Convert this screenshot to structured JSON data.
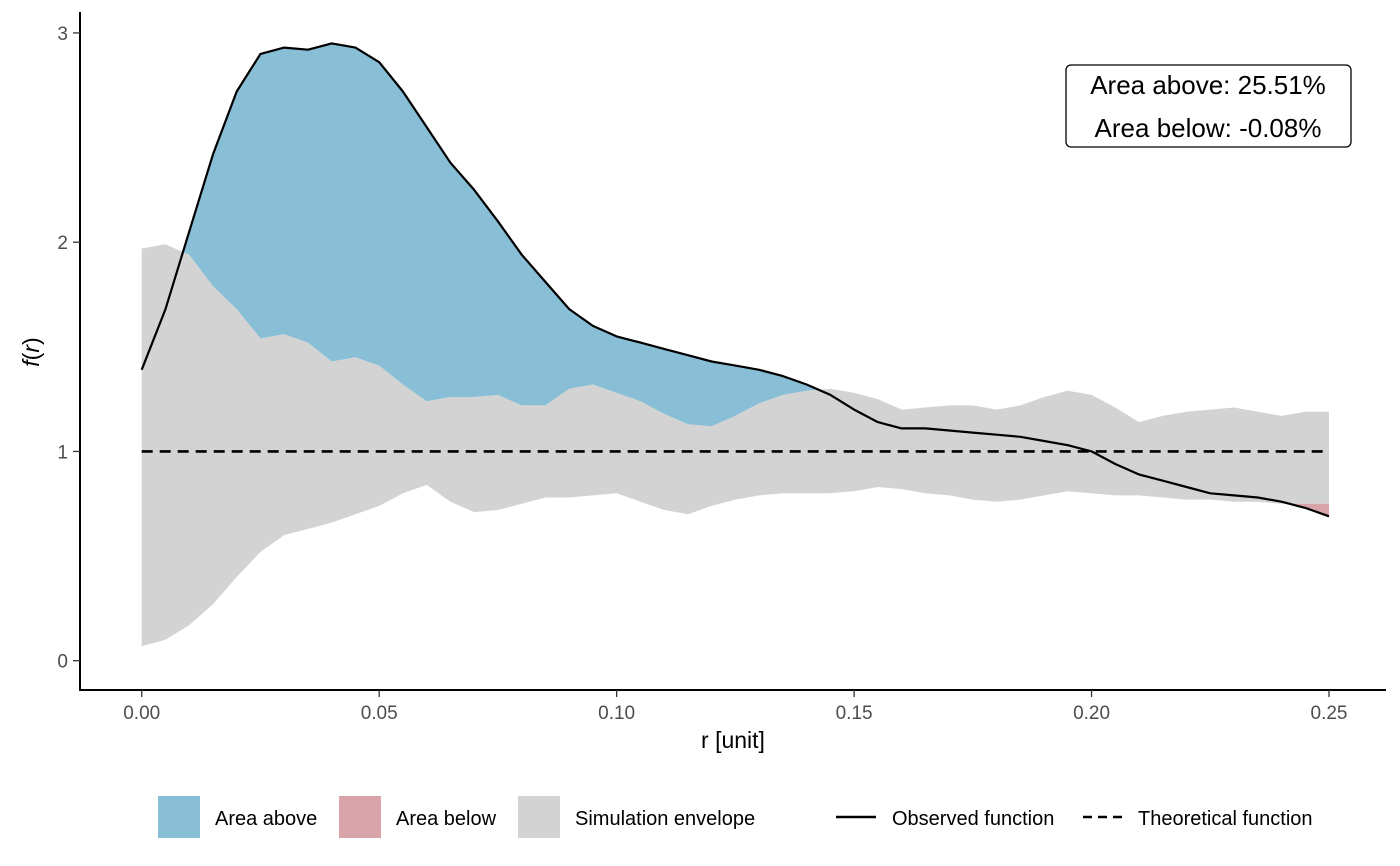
{
  "chart_data": {
    "type": "area",
    "xlabel": "r [unit]",
    "ylabel": "f(r)",
    "ylabel_parts": {
      "fn": "f",
      "open": "(",
      "var": "r",
      "close": ")"
    },
    "xlim": [
      -0.013,
      0.262
    ],
    "ylim": [
      -0.14,
      3.1
    ],
    "xticks": [
      0.0,
      0.05,
      0.1,
      0.15,
      0.2,
      0.25
    ],
    "xtick_labels": [
      "0.00",
      "0.05",
      "0.10",
      "0.15",
      "0.20",
      "0.25"
    ],
    "yticks": [
      0,
      1,
      2,
      3
    ],
    "ytick_labels": [
      "0",
      "1",
      "2",
      "3"
    ],
    "grid": false,
    "annotation": {
      "line1": "Area above: 25.51%",
      "line2": "Area below: -0.08%",
      "position": "top-right"
    },
    "colors": {
      "area_above": "#89bfd6",
      "area_below": "#d9a3aa",
      "envelope": "#d3d3d3",
      "observed": "#000000",
      "theoretical": "#000000"
    },
    "legend": {
      "position": "bottom",
      "items": [
        {
          "label": "Area above",
          "kind": "fill",
          "color": "#89bfd6"
        },
        {
          "label": "Area below",
          "kind": "fill",
          "color": "#d9a3aa"
        },
        {
          "label": "Simulation envelope",
          "kind": "fill",
          "color": "#d3d3d3"
        },
        {
          "label": "Observed function",
          "kind": "solid"
        },
        {
          "label": "Theoretical function",
          "kind": "dashed"
        }
      ]
    },
    "x": [
      0.0,
      0.005,
      0.01,
      0.015,
      0.02,
      0.025,
      0.03,
      0.035,
      0.04,
      0.045,
      0.05,
      0.055,
      0.06,
      0.065,
      0.07,
      0.075,
      0.08,
      0.085,
      0.09,
      0.095,
      0.1,
      0.105,
      0.11,
      0.115,
      0.12,
      0.125,
      0.13,
      0.135,
      0.14,
      0.145,
      0.15,
      0.155,
      0.16,
      0.165,
      0.17,
      0.175,
      0.18,
      0.185,
      0.19,
      0.195,
      0.2,
      0.205,
      0.21,
      0.215,
      0.22,
      0.225,
      0.23,
      0.235,
      0.24,
      0.245,
      0.25
    ],
    "series": [
      {
        "name": "Observed function",
        "values": [
          1.39,
          1.68,
          2.05,
          2.42,
          2.72,
          2.9,
          2.93,
          2.92,
          2.95,
          2.93,
          2.86,
          2.72,
          2.55,
          2.38,
          2.25,
          2.1,
          1.94,
          1.81,
          1.68,
          1.6,
          1.55,
          1.52,
          1.49,
          1.46,
          1.43,
          1.41,
          1.39,
          1.36,
          1.32,
          1.27,
          1.2,
          1.14,
          1.11,
          1.11,
          1.1,
          1.09,
          1.08,
          1.07,
          1.05,
          1.03,
          1.0,
          0.94,
          0.89,
          0.86,
          0.83,
          0.8,
          0.79,
          0.78,
          0.76,
          0.73,
          0.69
        ]
      },
      {
        "name": "Theoretical function",
        "values": [
          1,
          1,
          1,
          1,
          1,
          1,
          1,
          1,
          1,
          1,
          1,
          1,
          1,
          1,
          1,
          1,
          1,
          1,
          1,
          1,
          1,
          1,
          1,
          1,
          1,
          1,
          1,
          1,
          1,
          1,
          1,
          1,
          1,
          1,
          1,
          1,
          1,
          1,
          1,
          1,
          1,
          1,
          1,
          1,
          1,
          1,
          1,
          1,
          1,
          1,
          1
        ]
      },
      {
        "name": "Simulation envelope",
        "upper": [
          1.97,
          1.99,
          1.94,
          1.79,
          1.68,
          1.54,
          1.56,
          1.52,
          1.43,
          1.45,
          1.41,
          1.32,
          1.24,
          1.26,
          1.26,
          1.27,
          1.22,
          1.22,
          1.3,
          1.32,
          1.28,
          1.24,
          1.18,
          1.13,
          1.12,
          1.17,
          1.23,
          1.27,
          1.29,
          1.3,
          1.28,
          1.25,
          1.2,
          1.21,
          1.22,
          1.22,
          1.2,
          1.22,
          1.26,
          1.29,
          1.27,
          1.21,
          1.14,
          1.17,
          1.19,
          1.2,
          1.21,
          1.19,
          1.17,
          1.19,
          1.19
        ],
        "lower": [
          0.07,
          0.1,
          0.17,
          0.27,
          0.4,
          0.52,
          0.6,
          0.63,
          0.66,
          0.7,
          0.74,
          0.8,
          0.84,
          0.76,
          0.71,
          0.72,
          0.75,
          0.78,
          0.78,
          0.79,
          0.8,
          0.76,
          0.72,
          0.7,
          0.74,
          0.77,
          0.79,
          0.8,
          0.8,
          0.8,
          0.81,
          0.83,
          0.82,
          0.8,
          0.79,
          0.77,
          0.76,
          0.77,
          0.79,
          0.81,
          0.8,
          0.79,
          0.79,
          0.78,
          0.77,
          0.77,
          0.76,
          0.76,
          0.75,
          0.75,
          0.75
        ]
      }
    ]
  }
}
